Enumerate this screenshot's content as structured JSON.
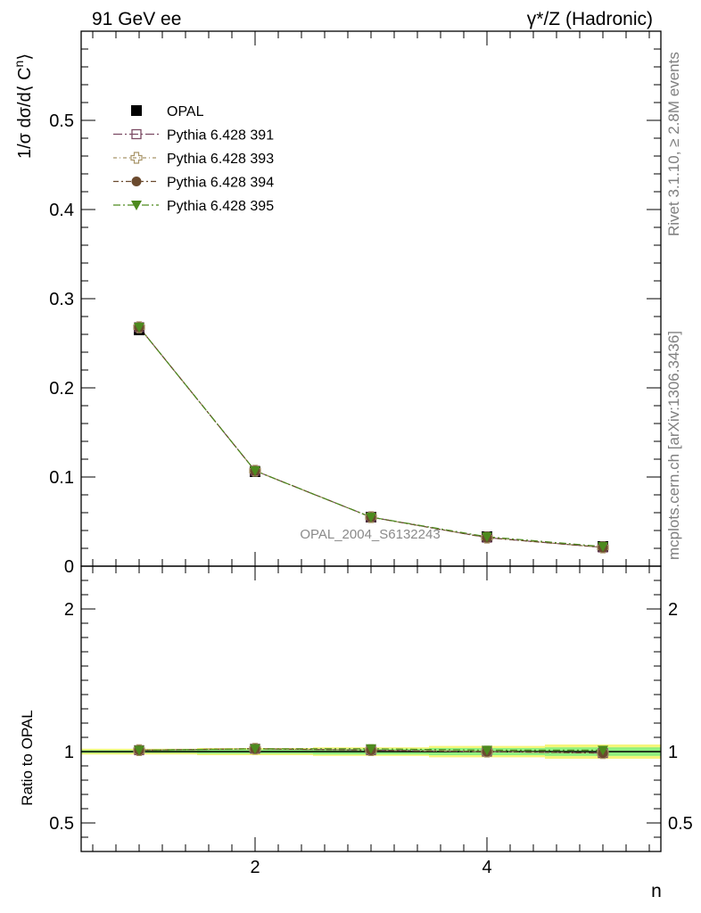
{
  "header": {
    "left": "91 GeV ee",
    "right": "γ*/Z (Hadronic)"
  },
  "side_labels": {
    "rivet": "Rivet 3.1.10, ≥ 2.8M events",
    "mcplots": "mcplots.cern.ch [arXiv:1306.3436]"
  },
  "watermark": "OPAL_2004_S6132243",
  "colors": {
    "opal": "#000000",
    "p391": "#7b4a63",
    "p393": "#a89467",
    "p394": "#6b4a2e",
    "p395": "#4d8a1e",
    "band_yellow": "#f5f57a",
    "band_green": "#8ff07f"
  },
  "chart_data": [
    {
      "type": "line",
      "name": "main",
      "ylabel_parts": [
        "1/σ dσ/d⟨ C",
        "n",
        "⟩"
      ],
      "xlabel": "",
      "xlim": [
        0.5,
        5.5
      ],
      "ylim": [
        0,
        0.6
      ],
      "y_ticks": [
        0.0,
        0.1,
        0.2,
        0.3,
        0.4,
        0.5
      ],
      "y_tick_labels": [
        "0",
        "0.1",
        "0.2",
        "0.3",
        "0.4",
        "0.5"
      ],
      "legend_position": "top-left",
      "x": [
        1,
        2,
        3,
        4,
        5
      ],
      "series": [
        {
          "name": "OPAL",
          "marker": "square",
          "values": [
            0.265,
            0.106,
            0.055,
            0.033,
            0.022
          ]
        },
        {
          "name": "Pythia 6.428 391",
          "marker": "open-square",
          "values": [
            0.268,
            0.107,
            0.055,
            0.032,
            0.021
          ]
        },
        {
          "name": "Pythia 6.428 393",
          "marker": "open-cross",
          "values": [
            0.268,
            0.107,
            0.055,
            0.032,
            0.021
          ]
        },
        {
          "name": "Pythia 6.428 394",
          "marker": "circle",
          "values": [
            0.268,
            0.107,
            0.055,
            0.032,
            0.021
          ]
        },
        {
          "name": "Pythia 6.428 395",
          "marker": "triangle-down",
          "values": [
            0.268,
            0.107,
            0.055,
            0.033,
            0.022
          ]
        }
      ]
    },
    {
      "type": "line",
      "name": "ratio",
      "ylabel": "Ratio to OPAL",
      "xlabel": "n",
      "xlim": [
        0.5,
        5.5
      ],
      "ylim": [
        0.3,
        2.3
      ],
      "y_ticks": [
        0.5,
        1,
        2
      ],
      "y_tick_labels": [
        "0.5",
        "1",
        "2"
      ],
      "x_ticks": [
        2,
        4
      ],
      "x_tick_labels": [
        "2",
        "4"
      ],
      "x": [
        1,
        2,
        3,
        4,
        5
      ],
      "bands": {
        "yellow": [
          0.02,
          0.025,
          0.03,
          0.04,
          0.05
        ],
        "green": [
          0.01,
          0.015,
          0.02,
          0.025,
          0.03
        ]
      },
      "series": [
        {
          "name": "Pythia 6.428 391",
          "values": [
            1.01,
            1.02,
            1.01,
            1.0,
            0.99
          ]
        },
        {
          "name": "Pythia 6.428 393",
          "values": [
            1.01,
            1.02,
            1.01,
            1.0,
            0.99
          ]
        },
        {
          "name": "Pythia 6.428 394",
          "values": [
            1.01,
            1.02,
            1.01,
            1.0,
            0.99
          ]
        },
        {
          "name": "Pythia 6.428 395",
          "values": [
            1.01,
            1.02,
            1.02,
            1.01,
            1.01
          ]
        }
      ]
    }
  ]
}
